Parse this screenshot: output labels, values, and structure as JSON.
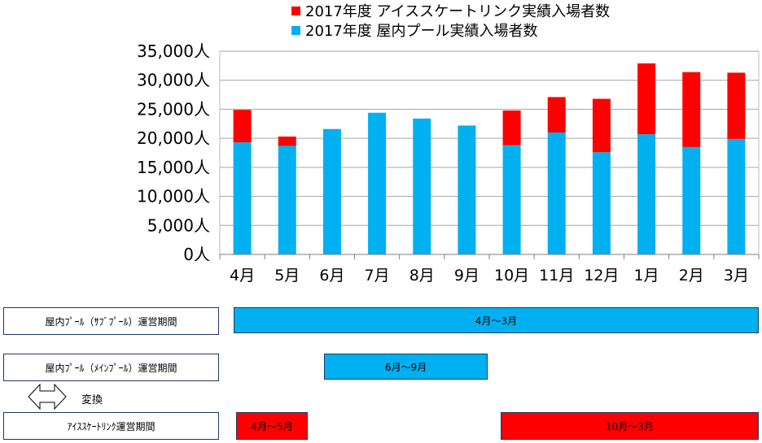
{
  "chart_data": {
    "type": "bar",
    "stacked": true,
    "categories": [
      "4月",
      "5月",
      "6月",
      "7月",
      "8月",
      "9月",
      "10月",
      "11月",
      "12月",
      "1月",
      "2月",
      "3月"
    ],
    "series": [
      {
        "name": "2017年度 屋内プール実績入場者数",
        "color": "#00b0f0",
        "values": [
          19300,
          18700,
          21600,
          24400,
          23400,
          22200,
          18800,
          21000,
          17600,
          20700,
          18500,
          19900
        ]
      },
      {
        "name": "2017年度 アイススケートリンク実績入場者数",
        "color": "#ff0000",
        "values": [
          5600,
          1600,
          0,
          0,
          0,
          0,
          6000,
          6100,
          9200,
          12200,
          12900,
          11400
        ]
      }
    ],
    "y_ticks": [
      "0人",
      "5,000人",
      "10,000人",
      "15,000人",
      "20,000人",
      "25,000人",
      "30,000人",
      "35,000人"
    ],
    "ylim": [
      0,
      35000
    ],
    "grid": true,
    "legend_position": "top",
    "legend": [
      {
        "label": "2017年度 アイススケートリンク実績入場者数",
        "color": "#ff0000"
      },
      {
        "label": "2017年度 屋内プール実績入場者数",
        "color": "#00b0f0"
      }
    ]
  },
  "periods": {
    "sub_pool": {
      "label": "屋内ﾌﾟｰﾙ（ｻﾌﾞﾌﾟｰﾙ）運営期間",
      "bar_text": "4月～3月",
      "color": "#00b0f0",
      "start_month": 0,
      "end_month": 12
    },
    "main_pool": {
      "label": "屋内ﾌﾟｰﾙ（ﾒｲﾝﾌﾟｰﾙ）運営期間",
      "bar_text": "6月～9月",
      "color": "#00b0f0",
      "start_month": 2,
      "end_month": 6
    },
    "conversion": "変換",
    "ice_rink": {
      "label": "ｱｲｽｽｹｰﾄﾘﾝｸ運営期間",
      "bar1_text": "4月～5月",
      "bar2_text": "10月～3月",
      "color": "#ff0000",
      "bar1_start": 0,
      "bar1_end": 2,
      "bar2_start": 6,
      "bar2_end": 12
    }
  }
}
